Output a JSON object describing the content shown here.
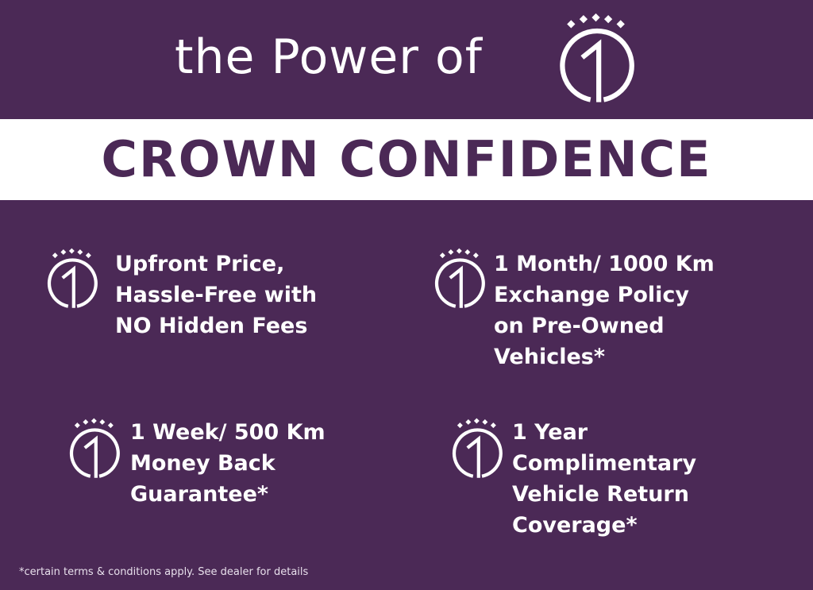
{
  "header": {
    "title": "the Power of",
    "logo": "crown-one-logo"
  },
  "banner": {
    "title": "CROWN CONFIDENCE"
  },
  "features": [
    {
      "icon": "crown-one-icon",
      "lines": [
        "Upfront Price,",
        "Hassle-Free with",
        "NO Hidden Fees"
      ]
    },
    {
      "icon": "crown-one-icon",
      "lines": [
        "1 Month/ 1000 Km",
        "Exchange Policy",
        "on Pre-Owned",
        "Vehicles*"
      ]
    },
    {
      "icon": "crown-one-icon",
      "lines": [
        "1 Week/ 500 Km",
        "Money Back",
        "Guarantee*"
      ]
    },
    {
      "icon": "crown-one-icon",
      "lines": [
        "1 Year",
        "Complimentary",
        "Vehicle Return",
        "Coverage*"
      ]
    }
  ],
  "footnote": "*certain terms & conditions apply. See dealer for details",
  "colors": {
    "background": "#4b2956",
    "band": "#ffffff",
    "text": "#ffffff"
  }
}
